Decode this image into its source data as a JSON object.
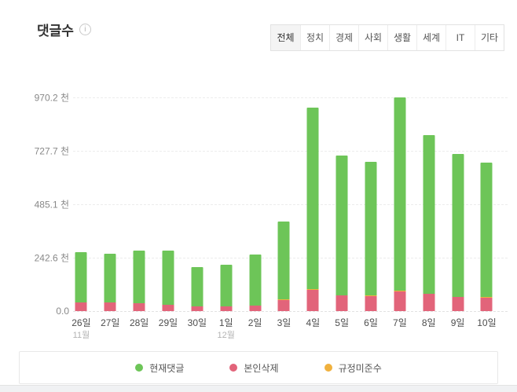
{
  "header": {
    "title": "댓글수",
    "info_icon_glyph": "i"
  },
  "tabs": [
    {
      "label": "전체",
      "selected": true
    },
    {
      "label": "정치",
      "selected": false
    },
    {
      "label": "경제",
      "selected": false
    },
    {
      "label": "사회",
      "selected": false
    },
    {
      "label": "생활",
      "selected": false
    },
    {
      "label": "세계",
      "selected": false
    },
    {
      "label": "IT",
      "selected": false
    },
    {
      "label": "기타",
      "selected": false
    }
  ],
  "chart_data": {
    "type": "bar",
    "stacked": true,
    "title": "댓글수",
    "unit_suffix": "천",
    "categories": [
      "26일",
      "27일",
      "28일",
      "29일",
      "30일",
      "1일",
      "2일",
      "3일",
      "4일",
      "5일",
      "6일",
      "7일",
      "8일",
      "9일",
      "10일"
    ],
    "month_markers": [
      "11월",
      "",
      "",
      "",
      "",
      "12월",
      "",
      "",
      "",
      "",
      "",
      "",
      "",
      "",
      ""
    ],
    "y_tick_labels": [
      "970.2 천",
      "727.7 천",
      "485.1 천",
      "242.6 천",
      "0.0"
    ],
    "ylim": [
      0,
      970.2
    ],
    "grid": "horizontal-dashed",
    "legend_position": "bottom",
    "series": [
      {
        "name": "현재댓글",
        "color": "#6dc558",
        "values": [
          228,
          222,
          238,
          246,
          180,
          189,
          232,
          353,
          824,
          632,
          607,
          878,
          719,
          646,
          611
        ]
      },
      {
        "name": "본인삭제",
        "color": "#e2647a",
        "values": [
          38,
          38,
          36,
          29,
          20,
          20,
          24,
          50,
          96,
          71,
          69,
          89,
          77,
          63,
          61
        ]
      },
      {
        "name": "규정미준수",
        "color": "#f0b13e",
        "values": [
          1,
          1,
          1,
          1,
          0.5,
          0.5,
          1,
          2,
          3,
          2,
          2,
          3.2,
          3,
          3,
          3
        ]
      }
    ],
    "stack_bottom_to_top": [
      "본인삭제",
      "규정미준수",
      "현재댓글"
    ],
    "totals": [
      267,
      261,
      275,
      276,
      200.5,
      209.5,
      257,
      405,
      923,
      705,
      678,
      970.2,
      799,
      712,
      675
    ]
  }
}
